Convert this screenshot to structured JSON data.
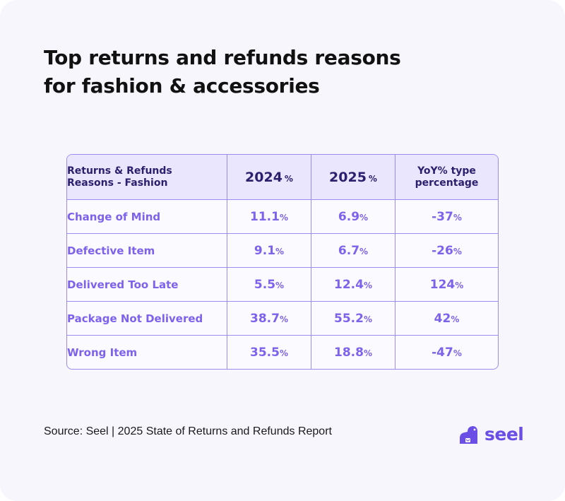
{
  "title_lines": [
    "Top returns and refunds reasons",
    "for fashion & accessories"
  ],
  "colors": {
    "accent": "#7d62ec",
    "header_bg": "#e9e6fd",
    "header_text": "#2b1f6e",
    "border": "#9b8cf5",
    "background": "#f7f6fd"
  },
  "table": {
    "headers": {
      "reason_line1": "Returns & Refunds",
      "reason_line2": "Reasons - Fashion",
      "y2024": "2024",
      "y2025": "2025",
      "pct_suffix": "%",
      "yoy_line1": "YoY% type",
      "yoy_line2": "percentage"
    },
    "unit": "%",
    "rows": [
      {
        "reason": "Change of Mind",
        "v2024": "11.1",
        "v2025": "6.9",
        "yoy": "-37"
      },
      {
        "reason": "Defective Item",
        "v2024": "9.1",
        "v2025": "6.7",
        "yoy": "-26"
      },
      {
        "reason": "Delivered Too Late",
        "v2024": "5.5",
        "v2025": "12.4",
        "yoy": "124"
      },
      {
        "reason": "Package Not Delivered",
        "v2024": "38.7",
        "v2025": "55.2",
        "yoy": "42"
      },
      {
        "reason": "Wrong Item",
        "v2024": "35.5",
        "v2025": "18.8",
        "yoy": "-47"
      }
    ]
  },
  "chart_data": {
    "type": "table",
    "title": "Top returns and refunds reasons for fashion & accessories",
    "columns": [
      "Returns & Refunds Reasons - Fashion",
      "2024 %",
      "2025 %",
      "YoY% type percentage"
    ],
    "categories": [
      "Change of Mind",
      "Defective Item",
      "Delivered Too Late",
      "Package Not Delivered",
      "Wrong Item"
    ],
    "series": [
      {
        "name": "2024 %",
        "values": [
          11.1,
          9.1,
          5.5,
          38.7,
          35.5
        ]
      },
      {
        "name": "2025 %",
        "values": [
          6.9,
          6.7,
          12.4,
          55.2,
          18.8
        ]
      },
      {
        "name": "YoY% type percentage",
        "values": [
          -37,
          -26,
          124,
          42,
          -47
        ]
      }
    ]
  },
  "footer": {
    "source": "Source: Seel | 2025 State of Returns and Refunds Report",
    "brand": "seel",
    "logo_icon": "seel-seal-icon"
  }
}
